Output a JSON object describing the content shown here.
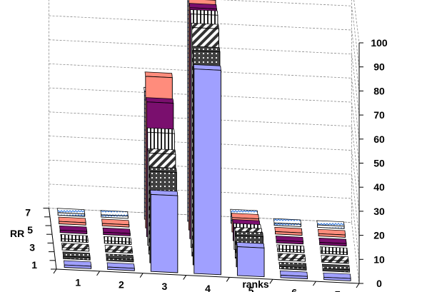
{
  "chart_data": {
    "type": "bar",
    "subtype": "3d-column",
    "title": "",
    "xlabel": "ranks",
    "zlabel": "RR",
    "ylabel": "",
    "categories": [
      "1",
      "2",
      "3",
      "4",
      "5",
      "6",
      "7"
    ],
    "zlim_ticks": [
      "1",
      "3",
      "5",
      "7"
    ],
    "ylim": [
      0,
      100
    ],
    "yticks": [
      0,
      10,
      20,
      30,
      40,
      50,
      60,
      70,
      80,
      90,
      100
    ],
    "grid": true,
    "legend": "none",
    "series": [
      {
        "fill": "#a0a0ff",
        "pattern": "solid",
        "values": [
          1,
          1,
          32,
          85,
          12,
          1,
          1
        ]
      },
      {
        "fill": "#404040",
        "pattern": "dots",
        "values": [
          1,
          1,
          38,
          89,
          13,
          1,
          1
        ]
      },
      {
        "fill": "#ffffff",
        "pattern": "diagonal",
        "values": [
          1,
          1,
          42,
          95,
          11,
          1,
          1
        ]
      },
      {
        "fill": "#ffffff",
        "pattern": "vertical",
        "values": [
          1,
          1,
          47,
          97,
          9,
          1,
          1
        ]
      },
      {
        "fill": "#7a0f6e",
        "pattern": "solid",
        "values": [
          1,
          1,
          56,
          96,
          7,
          1,
          1
        ]
      },
      {
        "fill": "#ff8c7c",
        "pattern": "solid",
        "values": [
          1,
          1,
          63,
          96,
          6,
          1,
          1
        ]
      },
      {
        "fill": "#ffffff",
        "pattern": "zigzag-blue",
        "values": [
          1,
          1,
          53,
          98,
          4,
          1,
          1
        ]
      }
    ]
  }
}
